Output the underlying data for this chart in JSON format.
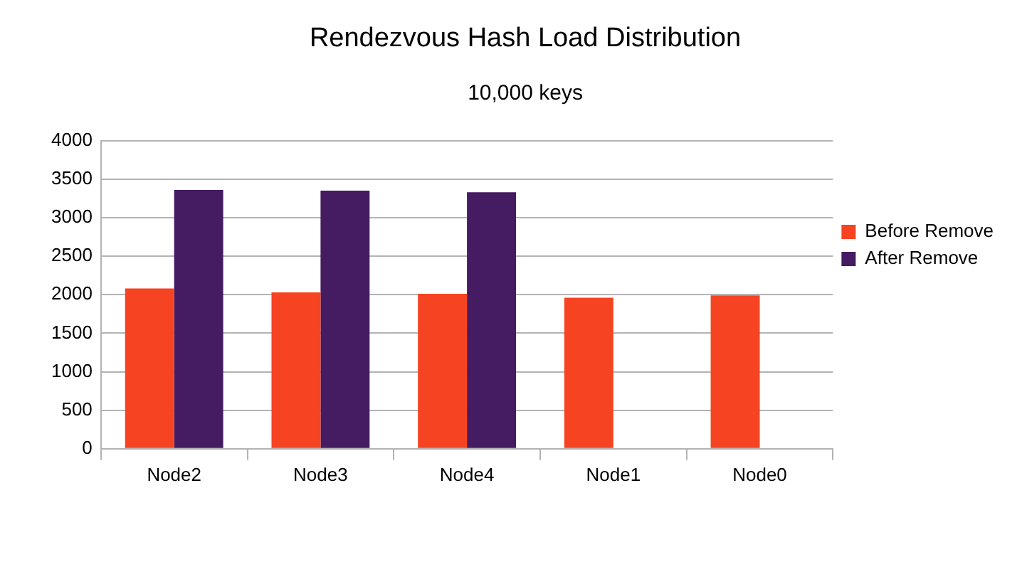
{
  "chart_data": {
    "type": "bar",
    "title": "Rendezvous Hash Load Distribution",
    "subtitle": "10,000 keys",
    "categories": [
      "Node2",
      "Node3",
      "Node4",
      "Node1",
      "Node0"
    ],
    "series": [
      {
        "name": "Before Remove",
        "color": "#f64322",
        "values": [
          2080,
          2030,
          2010,
          1960,
          1990
        ]
      },
      {
        "name": "After Remove",
        "color": "#451b62",
        "values": [
          3360,
          3350,
          3330,
          null,
          null
        ]
      }
    ],
    "ylim": [
      0,
      4000
    ],
    "yticks": [
      0,
      500,
      1000,
      1500,
      2000,
      2500,
      3000,
      3500,
      4000
    ],
    "grid": "y",
    "legend": "right"
  }
}
